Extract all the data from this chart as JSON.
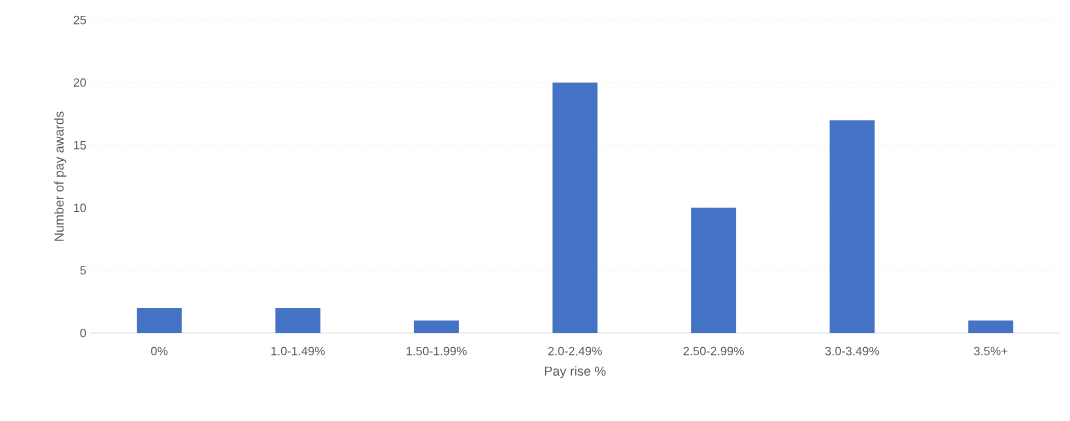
{
  "chart_data": {
    "type": "bar",
    "xlabel": "Pay rise %",
    "ylabel": "Number of pay awards",
    "categories": [
      "0%",
      "1.0-1.49%",
      "1.50-1.99%",
      "2.0-2.49%",
      "2.50-2.99%",
      "3.0-3.49%",
      "3.5%+"
    ],
    "values": [
      2,
      2,
      1,
      20,
      10,
      17,
      1
    ],
    "color": "#4472c4",
    "ylim": [
      0,
      25
    ],
    "yticks": [
      0,
      5,
      10,
      15,
      20,
      25
    ],
    "grid": "y"
  }
}
